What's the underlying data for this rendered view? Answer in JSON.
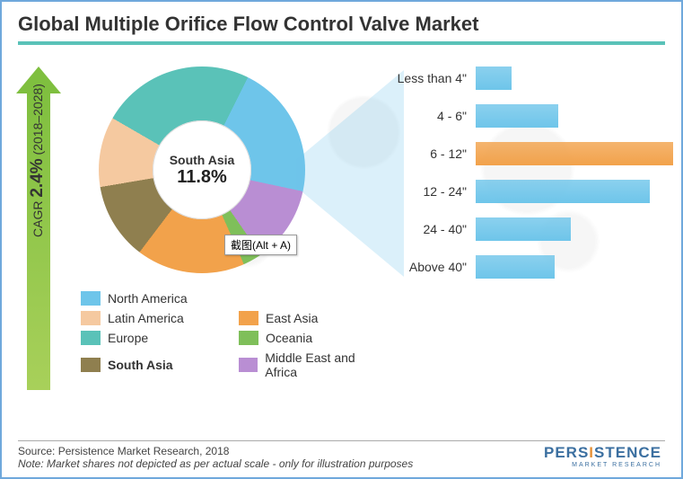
{
  "title": "Global Multiple Orifice Flow Control Valve Market",
  "cagr": {
    "value": "2.4%",
    "label": "CAGR",
    "period": "(2018–2028)"
  },
  "colors": {
    "north_america": "#6ec5ea",
    "latin_america": "#f5c9a0",
    "europe": "#5ac2b8",
    "south_asia": "#8f7f4f",
    "east_asia": "#f2a24b",
    "oceania": "#7fbf5a",
    "mea": "#b98ed3",
    "bar_secondary": "#6ec5ea",
    "bar_highlight": "#f2a24b",
    "arrow_top": "#7fbf3f",
    "border": "#6fa8dc",
    "title_underline": "#5ac2b8"
  },
  "donut": {
    "center_label": "South Asia",
    "center_value": "11.8%",
    "slices": [
      {
        "key": "europe",
        "label": "Europe",
        "pct": 24
      },
      {
        "key": "north_america",
        "label": "North America",
        "pct": 21
      },
      {
        "key": "mea",
        "label": "Middle East and Africa",
        "pct": 12
      },
      {
        "key": "oceania",
        "label": "Oceania",
        "pct": 3
      },
      {
        "key": "east_asia",
        "label": "East Asia",
        "pct": 17
      },
      {
        "key": "south_asia",
        "label": "South Asia",
        "pct": 12
      },
      {
        "key": "latin_america",
        "label": "Latin America",
        "pct": 11
      }
    ]
  },
  "tooltip": "截图(Alt + A)",
  "bars": {
    "max": 100,
    "items": [
      {
        "label": "Less than 4\"",
        "value": 18,
        "color_key": "bar_secondary"
      },
      {
        "label": "4 - 6\"",
        "value": 42,
        "color_key": "bar_secondary"
      },
      {
        "label": "6 - 12\"",
        "value": 100,
        "color_key": "bar_highlight"
      },
      {
        "label": "12 - 24\"",
        "value": 88,
        "color_key": "bar_secondary"
      },
      {
        "label": "24 - 40\"",
        "value": 48,
        "color_key": "bar_secondary"
      },
      {
        "label": "Above 40\"",
        "value": 40,
        "color_key": "bar_secondary"
      }
    ]
  },
  "legend": [
    {
      "label": "North America",
      "color_key": "north_america"
    },
    {
      "label": "Latin America",
      "color_key": "latin_america"
    },
    {
      "label": "East Asia",
      "color_key": "east_asia"
    },
    {
      "label": "Europe",
      "color_key": "europe"
    },
    {
      "label": "Oceania",
      "color_key": "oceania"
    },
    {
      "label": "South Asia",
      "color_key": "south_asia",
      "bold": true
    },
    {
      "label": "Middle East and Africa",
      "color_key": "mea"
    }
  ],
  "legend_layout": [
    [
      "north_america",
      null
    ],
    [
      "latin_america",
      "east_asia"
    ],
    [
      "europe",
      "oceania"
    ],
    [
      "south_asia",
      "mea"
    ]
  ],
  "footer": {
    "source": "Source: Persistence Market Research, 2018",
    "note": "Note:  Market shares not depicted as per actual scale - only for illustration purposes"
  },
  "brand": {
    "name": "PERSISTENCE",
    "sub": "MARKET RESEARCH"
  }
}
